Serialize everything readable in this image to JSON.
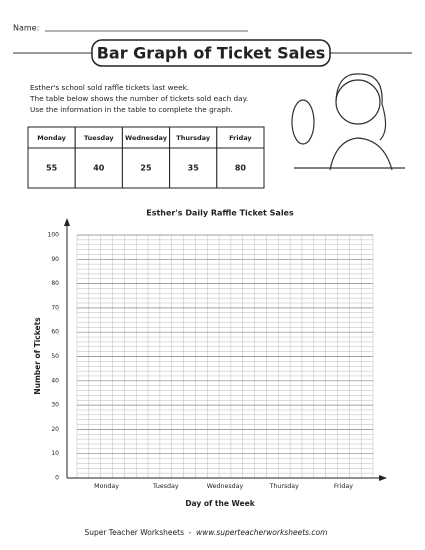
{
  "name_label": "Name:",
  "title": "Bar Graph of Ticket Sales",
  "instructions": [
    "Esther's school sold raffle tickets last week.",
    "The table below shows the number of tickets sold each day.",
    "Use the information in the table to complete the graph."
  ],
  "table": {
    "headers": [
      "Monday",
      "Tuesday",
      "Wednesday",
      "Thursday",
      "Friday"
    ],
    "rows": [
      [
        55,
        40,
        25,
        35,
        80
      ]
    ]
  },
  "graph": {
    "title": "Esther's Daily Raffle Ticket Sales",
    "ylim": [
      0,
      100
    ],
    "yticks": [
      0,
      10,
      20,
      30,
      40,
      50,
      60,
      70,
      80,
      90,
      100
    ],
    "categories": [
      "Monday",
      "Tuesday",
      "Wednesday",
      "Thursday",
      "Friday"
    ],
    "ylabel": "Number of Tickets",
    "xlabel": "Day of the Week"
  },
  "footer": {
    "brand": "Super Teacher Worksheets",
    "separator": "-",
    "url": "www.superteacherworksheets.com"
  }
}
